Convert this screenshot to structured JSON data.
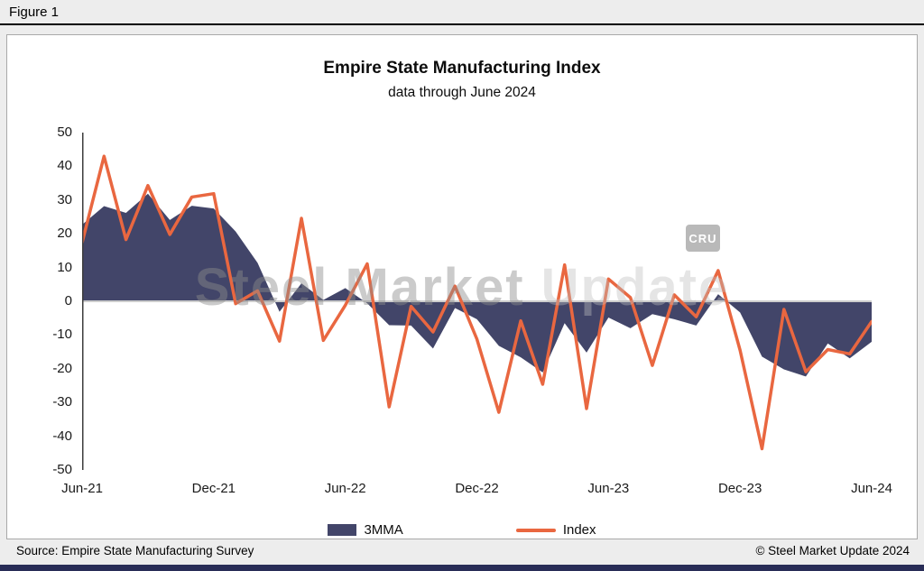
{
  "figure_label": "Figure 1",
  "chart_data": {
    "type": "combo-area-line",
    "title": "Empire State Manufacturing Index",
    "subtitle": "data through June 2024",
    "x": [
      "Jun-21",
      "Jul-21",
      "Aug-21",
      "Sep-21",
      "Oct-21",
      "Nov-21",
      "Dec-21",
      "Jan-22",
      "Feb-22",
      "Mar-22",
      "Apr-22",
      "May-22",
      "Jun-22",
      "Jul-22",
      "Aug-22",
      "Sep-22",
      "Oct-22",
      "Nov-22",
      "Dec-22",
      "Jan-23",
      "Feb-23",
      "Mar-23",
      "Apr-23",
      "May-23",
      "Jun-23",
      "Jul-23",
      "Aug-23",
      "Sep-23",
      "Oct-23",
      "Nov-23",
      "Dec-23",
      "Jan-24",
      "Feb-24",
      "Mar-24",
      "Apr-24",
      "May-24",
      "Jun-24"
    ],
    "series": [
      {
        "name": "3MMA",
        "type": "area",
        "color": "#424569",
        "values": [
          22.7,
          28.2,
          26.2,
          31.9,
          24.1,
          28.3,
          27.5,
          20.7,
          11.4,
          -3.1,
          5.3,
          0.4,
          3.9,
          -0.6,
          -7.1,
          -7.2,
          -14.0,
          -2.0,
          -5.3,
          -13.2,
          -16.6,
          -21.1,
          -6.5,
          -15.2,
          -4.8,
          -8.0,
          -3.8,
          -5.3,
          -7.2,
          2.1,
          -3.3,
          -16.4,
          -20.2,
          -22.3,
          -12.5,
          -16.9,
          -12.0
        ]
      },
      {
        "name": "Index",
        "type": "line",
        "color": "#E96740",
        "values": [
          17.4,
          43.0,
          18.3,
          34.3,
          19.8,
          30.9,
          31.9,
          -0.7,
          3.1,
          -11.8,
          24.6,
          -11.6,
          -1.2,
          11.1,
          -31.3,
          -1.5,
          -9.1,
          4.5,
          -11.2,
          -32.9,
          -5.8,
          -24.6,
          10.8,
          -31.8,
          6.6,
          1.1,
          -19.0,
          1.9,
          -4.6,
          9.1,
          -14.5,
          -43.7,
          -2.4,
          -20.9,
          -14.3,
          -15.6,
          -6.0
        ]
      }
    ],
    "ylim": [
      -50,
      50
    ],
    "y_ticks": [
      50,
      40,
      30,
      20,
      10,
      0,
      -10,
      -20,
      -30,
      -40,
      -50
    ],
    "x_tick_labels": [
      "Jun-21",
      "Dec-21",
      "Jun-22",
      "Dec-22",
      "Jun-23",
      "Dec-23",
      "Jun-24"
    ],
    "x_tick_indices": [
      0,
      6,
      12,
      18,
      24,
      30,
      36
    ],
    "grid": "zero-line-only",
    "legend_position": "bottom"
  },
  "watermark": {
    "text_primary": "Steel Market",
    "text_secondary": " Update",
    "badge": "CRU"
  },
  "footer": {
    "source": "Source: Empire State Manufacturing Survey",
    "copyright": "© Steel Market Update 2024"
  }
}
